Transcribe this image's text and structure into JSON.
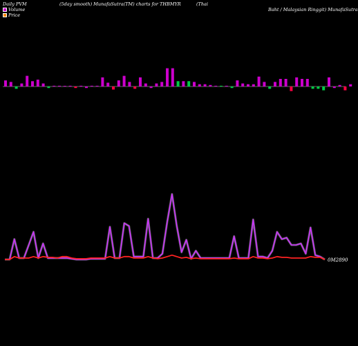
{
  "header": {
    "left": "Daily PVM",
    "middle": "(5day smooth) MunafaSutra(TM) charts for THBMYR",
    "right": "(Thai",
    "right2": "Baht / Malaysian Ringgit) MunafaSutra"
  },
  "legend": {
    "volume_label": "Volume",
    "price_label": "Price",
    "volume_color": "#cc00cc",
    "price_color": "#ff8800"
  },
  "colors": {
    "background": "#000000",
    "volume_up": "#cc00cc",
    "volume_down": "#ff0044",
    "volume_neutral": "#00cc44",
    "baseline": "#888888",
    "smooth_line": "#cc33ff",
    "price_line": "#ff2222"
  },
  "chart_data": {
    "type": "bar",
    "title": "Daily PVM (5day smooth) MunafaSutra(TM) charts for THBMYR",
    "volume": {
      "values": [
        8,
        6,
        -3,
        4,
        14,
        7,
        9,
        4,
        -2,
        1,
        1,
        0,
        1,
        -2,
        1,
        -2,
        1,
        1,
        12,
        5,
        -4,
        8,
        14,
        6,
        -3,
        12,
        4,
        -2,
        4,
        6,
        24,
        24,
        7,
        7,
        7,
        6,
        3,
        3,
        2,
        1,
        1,
        1,
        -2,
        8,
        4,
        3,
        3,
        13,
        6,
        -3,
        6,
        10,
        10,
        -6,
        12,
        10,
        10,
        -3,
        -3,
        -5,
        12,
        -2,
        2,
        -5,
        3
      ],
      "colors": [
        "u",
        "u",
        "n",
        "u",
        "u",
        "u",
        "u",
        "u",
        "n",
        "u",
        "u",
        "u",
        "u",
        "d",
        "u",
        "u",
        "u",
        "u",
        "u",
        "u",
        "d",
        "u",
        "u",
        "u",
        "d",
        "u",
        "u",
        "u",
        "u",
        "u",
        "u",
        "u",
        "n",
        "u",
        "n",
        "u",
        "u",
        "u",
        "u",
        "u",
        "n",
        "u",
        "n",
        "u",
        "u",
        "u",
        "u",
        "u",
        "u",
        "n",
        "u",
        "u",
        "u",
        "d",
        "u",
        "u",
        "u",
        "n",
        "n",
        "n",
        "u",
        "u",
        "u",
        "d",
        "u"
      ]
    },
    "series": [
      {
        "values": [
          0,
          0,
          28,
          2,
          2,
          20,
          38,
          2,
          22,
          2,
          2,
          2,
          2,
          2,
          1,
          0,
          0,
          0,
          1,
          1,
          1,
          1,
          45,
          2,
          2,
          50,
          46,
          4,
          4,
          4,
          56,
          2,
          2,
          8,
          52,
          90,
          46,
          10,
          27,
          1,
          12,
          2,
          2,
          2,
          2,
          2,
          2,
          2,
          32,
          2,
          2,
          2,
          55,
          4,
          4,
          2,
          12,
          38,
          28,
          30,
          20,
          20,
          22,
          8,
          44,
          6,
          4,
          0
        ]
      },
      {
        "values": [
          0,
          0,
          4,
          2,
          2,
          2,
          4,
          2,
          4,
          3,
          3,
          2,
          4,
          4,
          2,
          1,
          1,
          1,
          2,
          2,
          2,
          2,
          4,
          2,
          2,
          4,
          4,
          2,
          2,
          2,
          4,
          2,
          1,
          2,
          4,
          6,
          4,
          2,
          3,
          1,
          2,
          1,
          1,
          1,
          1,
          1,
          1,
          1,
          2,
          1,
          1,
          1,
          4,
          2,
          2,
          1,
          2,
          4,
          3,
          3,
          2,
          2,
          2,
          2,
          4,
          3,
          3,
          0
        ]
      }
    ],
    "price_label": "0M2890"
  }
}
